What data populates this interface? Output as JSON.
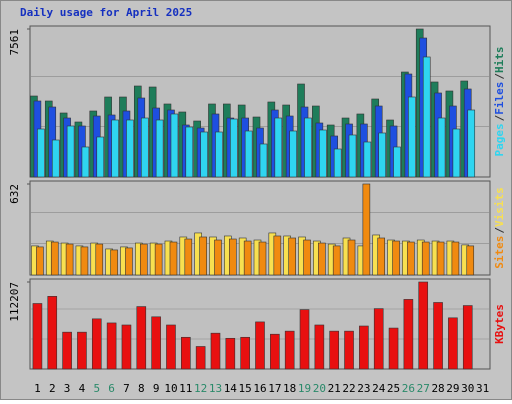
{
  "chart_data": [
    {
      "type": "bar",
      "title": "Daily usage for April 2025",
      "ylim": [
        0,
        7561
      ],
      "yticks": [
        7561
      ],
      "legend_separator": "/",
      "series": [
        {
          "name": "Hits",
          "color": "#1e7d5a",
          "values": [
            4138,
            3883,
            3270,
            2810,
            3372,
            4087,
            4087,
            4649,
            4598,
            3730,
            3321,
            2861,
            3730,
            3730,
            3678,
            3065,
            3832,
            3678,
            4751,
            3627,
            2657,
            3014,
            3219,
            3985,
            2912,
            5364,
            7561,
            4854,
            4394,
            4905,
            0
          ]
        },
        {
          "name": "Files",
          "color": "#1e4fe0",
          "values": [
            3883,
            3576,
            3014,
            2606,
            3116,
            3168,
            3372,
            4036,
            3525,
            3423,
            2657,
            2503,
            3219,
            3014,
            3014,
            2503,
            3423,
            3116,
            3576,
            2759,
            2095,
            2708,
            2708,
            3627,
            2606,
            5262,
            7101,
            4292,
            3627,
            4496,
            0
          ]
        },
        {
          "name": "Pages",
          "color": "#2fd5f0",
          "values": [
            2452,
            1890,
            2606,
            1533,
            2044,
            2912,
            2912,
            3014,
            2912,
            3219,
            2555,
            2299,
            2299,
            2963,
            2350,
            1686,
            3014,
            2350,
            3014,
            2401,
            1431,
            2146,
            1788,
            2248,
            1533,
            4087,
            6131,
            3014,
            2452,
            3423,
            0
          ]
        }
      ]
    },
    {
      "type": "bar",
      "ylim": [
        0,
        632
      ],
      "yticks": [
        632
      ],
      "legend_separator": "/",
      "series": [
        {
          "name": "Visits",
          "color": "#f8e050",
          "values": [
            202,
            236,
            222,
            202,
            222,
            181,
            195,
            222,
            222,
            236,
            264,
            292,
            264,
            271,
            257,
            243,
            292,
            271,
            264,
            236,
            215,
            257,
            202,
            278,
            243,
            236,
            243,
            236,
            236,
            209,
            0
          ]
        },
        {
          "name": "Sites",
          "color": "#f08a10",
          "values": [
            195,
            229,
            215,
            195,
            215,
            174,
            188,
            215,
            215,
            229,
            250,
            264,
            243,
            250,
            236,
            229,
            271,
            257,
            243,
            222,
            202,
            243,
            632,
            257,
            236,
            229,
            229,
            229,
            229,
            202,
            0
          ]
        }
      ]
    },
    {
      "type": "bar",
      "ylim": [
        0,
        112207
      ],
      "yticks": [
        112207
      ],
      "categories": [
        "1",
        "2",
        "3",
        "4",
        "5",
        "6",
        "7",
        "8",
        "9",
        "10",
        "11",
        "12",
        "13",
        "14",
        "15",
        "16",
        "17",
        "18",
        "19",
        "20",
        "21",
        "22",
        "23",
        "24",
        "25",
        "26",
        "27",
        "28",
        "29",
        "30",
        "31"
      ],
      "weekend_indices": [
        4,
        5,
        11,
        12,
        18,
        19,
        25,
        26
      ],
      "weekend_color": "#2a8a6a",
      "series": [
        {
          "name": "KBytes",
          "color": "#e81010",
          "values": [
            84480,
            93720,
            47520,
            47520,
            64680,
            59400,
            56760,
            80520,
            67320,
            56760,
            40920,
            29040,
            46200,
            39600,
            40920,
            60720,
            44880,
            48840,
            76560,
            56760,
            48840,
            48840,
            55440,
            77880,
            52800,
            89760,
            112207,
            85800,
            66000,
            81840,
            0
          ]
        }
      ]
    }
  ]
}
